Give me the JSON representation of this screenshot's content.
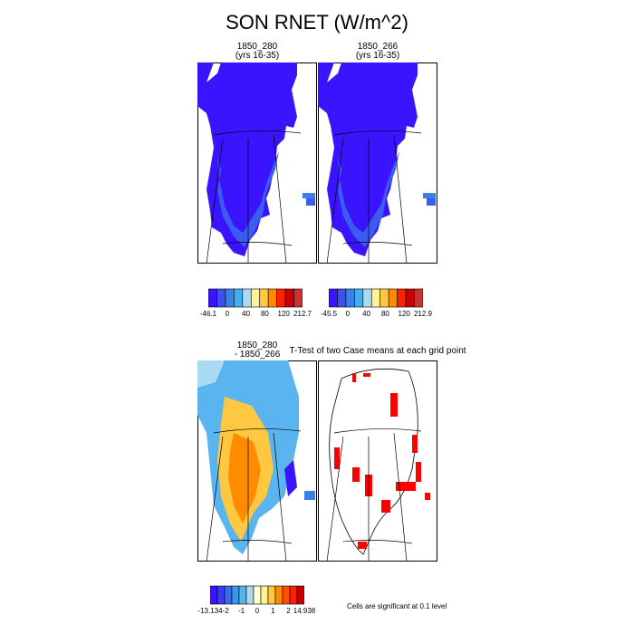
{
  "title": "SON RNET (W/m^2)",
  "panels": {
    "p1": {
      "title_line1": "1850_280",
      "title_line2": "(yrs 16-35)"
    },
    "p2": {
      "title_line1": "1850_266",
      "title_line2": "(yrs 16-35)"
    },
    "p3": {
      "title_line1": "1850_280",
      "title_line2": "- 1850_266"
    },
    "p4": {
      "title": "T-Test of two Case means at each grid point"
    }
  },
  "colorbars": {
    "cb1": {
      "labels": [
        "-46.1",
        "0",
        "40",
        "80",
        "120",
        "212.7"
      ],
      "colors": [
        "#3a14ff",
        "#3b50ee",
        "#3a80e6",
        "#3fb0ee",
        "#aadaf2",
        "#fff09a",
        "#ffc840",
        "#ff8c00",
        "#ff2000",
        "#c80000",
        "#c83232"
      ]
    },
    "cb2": {
      "labels": [
        "-45.5",
        "0",
        "40",
        "80",
        "120",
        "212.9"
      ],
      "colors": [
        "#3a14ff",
        "#3b50ee",
        "#3a80e6",
        "#3fb0ee",
        "#aadaf2",
        "#fff09a",
        "#ffc840",
        "#ff8c00",
        "#ff2000",
        "#c80000",
        "#c83232"
      ]
    },
    "cb3": {
      "labels": [
        "-13.134",
        "-2",
        "-1",
        "0",
        "1",
        "2",
        "14.938"
      ],
      "colors": [
        "#3a14ff",
        "#3b3bf0",
        "#3b6ae8",
        "#3a96e8",
        "#5ab4f0",
        "#aadaf2",
        "#ffffd0",
        "#fff09a",
        "#ffc840",
        "#ff8c00",
        "#ff5000",
        "#ff2000",
        "#c80000"
      ]
    }
  },
  "significance_note": "Cells are significant at 0.1 level",
  "colors": {
    "fill_main": "#3a14ff",
    "fill_edge": "#3b5cf0",
    "sig": "#ff0000"
  },
  "chart_data": {
    "type": "heatmap",
    "title": "SON RNET (W/m^2)",
    "units": "W/m^2",
    "panels": [
      {
        "name": "1850_280 (yrs 16-35)",
        "range": [
          -46.1,
          212.7
        ],
        "ticks": [
          -46.1,
          0,
          40,
          80,
          120,
          212.7
        ]
      },
      {
        "name": "1850_266 (yrs 16-35)",
        "range": [
          -45.5,
          212.9
        ],
        "ticks": [
          -45.5,
          0,
          40,
          80,
          120,
          212.9
        ]
      },
      {
        "name": "1850_280 - 1850_266",
        "range": [
          -13.134,
          14.938
        ],
        "ticks": [
          -13.134,
          -2,
          -1,
          0,
          1,
          2,
          14.938
        ]
      },
      {
        "name": "T-Test of two Case means at each grid point",
        "note": "Cells are significant at 0.1 level"
      }
    ]
  }
}
